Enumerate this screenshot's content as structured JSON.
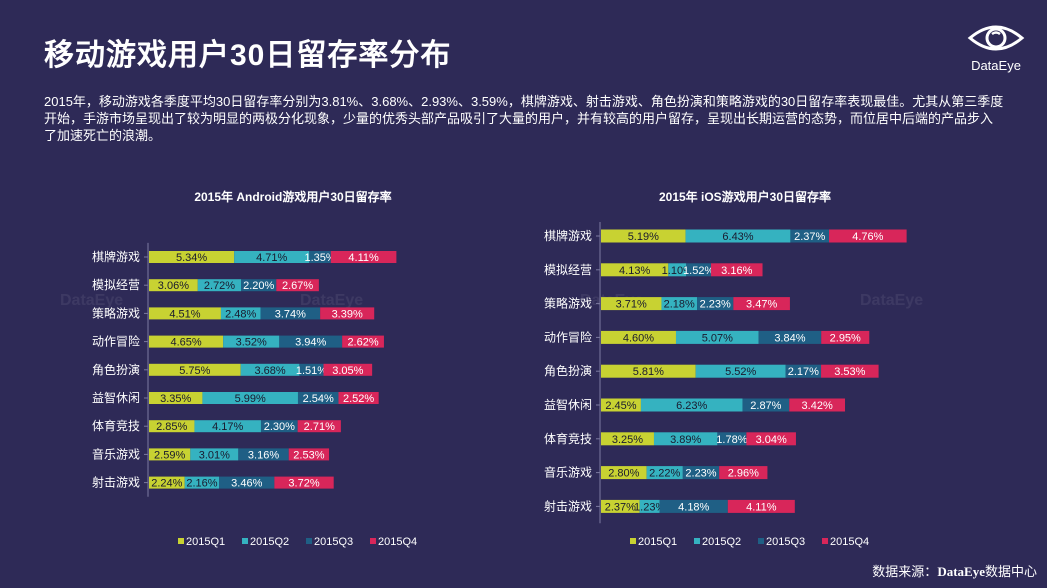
{
  "title": "移动游戏用户30日留存率分布",
  "logo": {
    "text": "DataEye",
    "icon": "eye-icon"
  },
  "description": "2015年，移动游戏各季度平均30日留存率分别为3.81%、3.68%、2.93%、3.59%，棋牌游戏、射击游戏、角色扮演和策略游戏的30日留存率表现最佳。尤其从第三季度开始，手游市场呈现出了较为明显的两极分化现象，少量的优秀头部产品吸引了大量的用户，并有较高的用户留存，呈现出长期运营的态势，而位居中后端的产品步入了加速死亡的浪潮。",
  "source": {
    "label": "数据来源：",
    "brand": "DataEye",
    "suffix": "数据中心"
  },
  "watermark": "DataEye",
  "colors": {
    "bg": "#2e2a57",
    "q1": "#c8d232",
    "q2": "#35b2c0",
    "q3": "#1f5f85",
    "q4": "#d8265a"
  },
  "chart_data": [
    {
      "type": "bar",
      "orientation": "horizontal-stacked",
      "title": "2015年 Android游戏用户30日留存率",
      "categories": [
        "棋牌游戏",
        "模拟经营",
        "策略游戏",
        "动作冒险",
        "角色扮演",
        "益智休闲",
        "体育竞技",
        "音乐游戏",
        "射击游戏"
      ],
      "series": [
        {
          "name": "2015Q1",
          "values": [
            5.34,
            3.06,
            4.51,
            4.65,
            5.75,
            3.35,
            2.85,
            2.59,
            2.24
          ]
        },
        {
          "name": "2015Q2",
          "values": [
            4.71,
            2.72,
            2.48,
            3.52,
            3.68,
            5.99,
            4.17,
            3.01,
            2.16
          ]
        },
        {
          "name": "2015Q3",
          "values": [
            1.35,
            2.2,
            3.74,
            3.94,
            1.51,
            2.54,
            2.3,
            3.16,
            3.46
          ]
        },
        {
          "name": "2015Q4",
          "values": [
            4.11,
            2.67,
            3.39,
            2.62,
            3.05,
            2.52,
            2.71,
            2.53,
            3.72
          ]
        }
      ],
      "legend": "bottom",
      "grid": false
    },
    {
      "type": "bar",
      "orientation": "horizontal-stacked",
      "title": "2015年 iOS游戏用户30日留存率",
      "categories": [
        "棋牌游戏",
        "模拟经营",
        "策略游戏",
        "动作冒险",
        "角色扮演",
        "益智休闲",
        "体育竞技",
        "音乐游戏",
        "射击游戏"
      ],
      "series": [
        {
          "name": "2015Q1",
          "values": [
            5.19,
            4.13,
            3.71,
            4.6,
            5.81,
            2.45,
            3.25,
            2.8,
            2.37
          ]
        },
        {
          "name": "2015Q2",
          "values": [
            6.43,
            1.1,
            2.18,
            5.07,
            5.52,
            6.23,
            3.89,
            2.22,
            1.23
          ]
        },
        {
          "name": "2015Q3",
          "values": [
            2.37,
            1.52,
            2.23,
            3.84,
            2.17,
            2.87,
            1.78,
            2.23,
            4.18
          ]
        },
        {
          "name": "2015Q4",
          "values": [
            4.76,
            3.16,
            3.47,
            2.95,
            3.53,
            3.42,
            3.04,
            2.96,
            4.11
          ]
        }
      ],
      "legend": "bottom",
      "grid": false
    }
  ]
}
